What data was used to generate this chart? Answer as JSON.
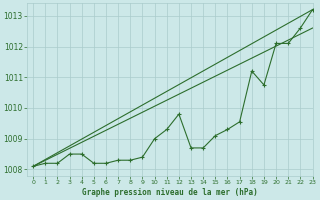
{
  "title": "Graphe pression niveau de la mer (hPa)",
  "background_color": "#cce8e8",
  "grid_color": "#aacccc",
  "line_color": "#2d6e2d",
  "xlim": [
    -0.5,
    23
  ],
  "ylim": [
    1007.8,
    1013.4
  ],
  "yticks": [
    1008,
    1009,
    1010,
    1011,
    1012,
    1013
  ],
  "xticks": [
    0,
    1,
    2,
    3,
    4,
    5,
    6,
    7,
    8,
    9,
    10,
    11,
    12,
    13,
    14,
    15,
    16,
    17,
    18,
    19,
    20,
    21,
    22,
    23
  ],
  "hourly_values": [
    1008.1,
    1008.2,
    1008.2,
    1008.5,
    1008.5,
    1008.2,
    1008.2,
    1008.3,
    1008.3,
    1008.4,
    1009.0,
    1009.3,
    1009.8,
    1008.7,
    1008.7,
    1009.1,
    1009.3,
    1009.55,
    1011.2,
    1010.75,
    1012.1,
    1012.1,
    1012.6,
    1013.2
  ],
  "ref_line1": [
    [
      0,
      23
    ],
    [
      1008.1,
      1013.2
    ]
  ],
  "ref_line2": [
    [
      0,
      23
    ],
    [
      1008.1,
      1013.2
    ]
  ],
  "ref_line3": [
    [
      0,
      23
    ],
    [
      1008.1,
      1012.6
    ]
  ]
}
